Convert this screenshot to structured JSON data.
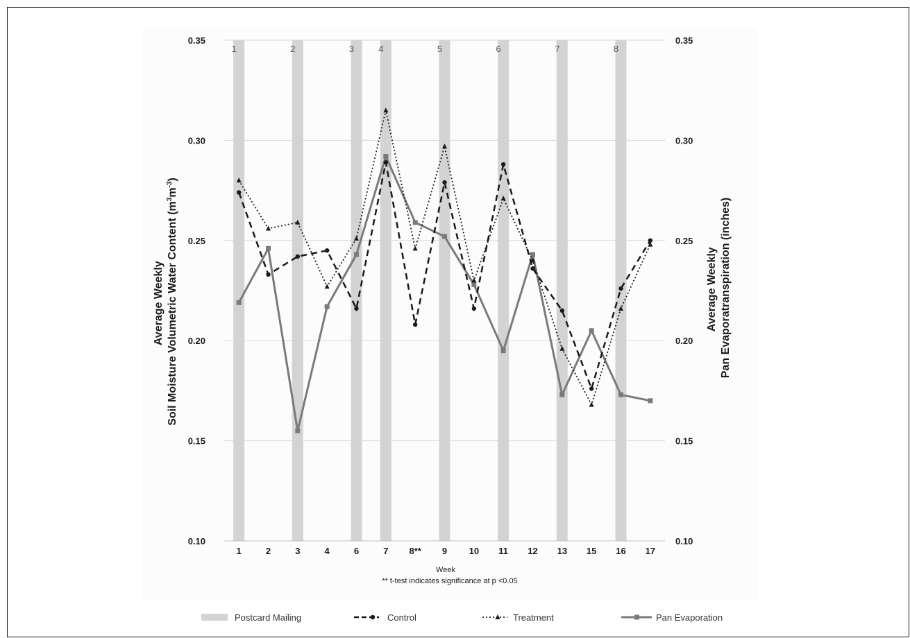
{
  "chart_data": {
    "type": "line",
    "categories": [
      "1",
      "2",
      "3",
      "4",
      "6",
      "7",
      "8**",
      "9",
      "10",
      "11",
      "12",
      "13",
      "15",
      "16",
      "17"
    ],
    "series": [
      {
        "name": "Control",
        "values": [
          0.274,
          0.233,
          0.242,
          0.245,
          0.216,
          0.289,
          0.208,
          0.279,
          0.216,
          0.288,
          0.236,
          0.215,
          0.176,
          0.226,
          0.25
        ]
      },
      {
        "name": "Treatment",
        "values": [
          0.28,
          0.256,
          0.259,
          0.227,
          0.251,
          0.315,
          0.246,
          0.297,
          0.23,
          0.271,
          0.24,
          0.196,
          0.168,
          0.216,
          0.248
        ]
      },
      {
        "name": "Pan Evaporation",
        "axis": "right",
        "values": [
          0.219,
          0.246,
          0.155,
          0.217,
          0.243,
          0.292,
          0.259,
          0.252,
          0.228,
          0.195,
          0.243,
          0.173,
          0.205,
          0.173,
          0.17
        ]
      }
    ],
    "postcard_mailings": [
      {
        "label": "1",
        "category_index": 0
      },
      {
        "label": "2",
        "category_index": 2
      },
      {
        "label": "3",
        "category_index": 4
      },
      {
        "label": "4",
        "category_index": 5
      },
      {
        "label": "5",
        "category_index": 7
      },
      {
        "label": "6",
        "category_index": 9
      },
      {
        "label": "7",
        "category_index": 11
      },
      {
        "label": "8",
        "category_index": 13
      }
    ],
    "ylim": [
      0.1,
      0.35
    ],
    "y2lim": [
      0.1,
      0.35
    ],
    "yticks": [
      "0.35",
      "0.30",
      "0.25",
      "0.20",
      "0.15",
      "0.10"
    ],
    "ylabel_line1": "Average Weekly",
    "ylabel_line2": "Soil Moisture Volumetric Water Content (m",
    "ylabel_sup1": "3",
    "ylabel_mid": "m",
    "ylabel_sup2": "-3",
    "ylabel_end": ")",
    "y2label_line1": "Average Weekly",
    "y2label_line2": "Pan Evaporatranspiration (inches)",
    "xlabel": "Week",
    "note": "** t-test indicates significance at p <0.05",
    "grid": true,
    "legend_position": "bottom",
    "legend": [
      {
        "name": "Postcard Mailing",
        "style": "bar"
      },
      {
        "name": "Control",
        "style": "dashed"
      },
      {
        "name": "Treatment",
        "style": "dotted"
      },
      {
        "name": "Pan Evaporation",
        "style": "solid"
      }
    ],
    "colors": {
      "bar": "#d3d3d3",
      "control": "#1a1a1a",
      "treatment": "#1a1a1a",
      "pan": "#7a7a7a",
      "grid": "#d9d9d9"
    }
  }
}
